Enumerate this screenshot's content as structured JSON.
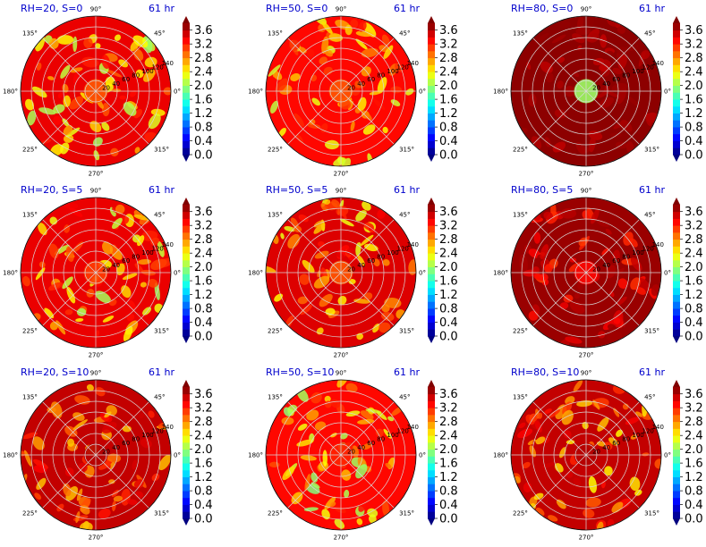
{
  "chart_data": {
    "type": "heatmap",
    "projection": "polar",
    "grid": true,
    "time_label": "61 hr",
    "angle_ticks": [
      "90°",
      "45°",
      "0°",
      "315°",
      "270°",
      "225°",
      "180°",
      "135°"
    ],
    "colorbar": {
      "ticks": [
        "0.0",
        "0.4",
        "0.8",
        "1.2",
        "1.6",
        "2.0",
        "2.4",
        "2.8",
        "3.2",
        "3.6"
      ],
      "range": [
        0.0,
        3.8
      ],
      "colormap": "jet",
      "extend": "both"
    },
    "panels": [
      {
        "title": "RH=20, S=0",
        "radial_ticks": [
          "20",
          "40",
          "60",
          "80",
          "100",
          "120",
          "140"
        ],
        "mean_value": 3.4,
        "center_value": 3.0,
        "speckle": 0.35
      },
      {
        "title": "RH=50, S=0",
        "radial_ticks": [
          "20",
          "40",
          "60",
          "80",
          "100",
          "120",
          "140"
        ],
        "mean_value": 3.3,
        "center_value": 3.0,
        "speckle": 0.3
      },
      {
        "title": "RH=80, S=0",
        "radial_ticks": [
          "20",
          "40",
          "60",
          "80",
          "100",
          "120",
          "140"
        ],
        "mean_value": 3.75,
        "center_value": 2.0,
        "speckle": 0.05
      },
      {
        "title": "RH=20, S=5",
        "radial_ticks": [
          "20",
          "40",
          "60",
          "80",
          "100",
          "120",
          "140"
        ],
        "mean_value": 3.4,
        "center_value": 3.1,
        "speckle": 0.35
      },
      {
        "title": "RH=50, S=5",
        "radial_ticks": [
          "20",
          "40",
          "60",
          "80",
          "100",
          "120",
          "140"
        ],
        "mean_value": 3.45,
        "center_value": 3.0,
        "speckle": 0.3
      },
      {
        "title": "RH=80, S=5",
        "radial_ticks": [
          "20",
          "40",
          "60",
          "80",
          "100",
          "120",
          "140"
        ],
        "mean_value": 3.7,
        "center_value": 3.3,
        "speckle": 0.15
      },
      {
        "title": "RH=20, S=10",
        "radial_ticks": [
          "20",
          "40",
          "60",
          "80",
          "100",
          "120",
          "140"
        ],
        "mean_value": 3.55,
        "center_value": 3.6,
        "speckle": 0.25
      },
      {
        "title": "RH=50, S=10",
        "radial_ticks": [
          "20",
          "40",
          "60",
          "80",
          "100",
          "120",
          "140"
        ],
        "mean_value": 3.3,
        "center_value": 3.2,
        "speckle": 0.35
      },
      {
        "title": "RH=80, S=10",
        "radial_ticks": [
          "20",
          "40",
          "60",
          "80",
          "100",
          "120",
          "140"
        ],
        "mean_value": 3.55,
        "center_value": 3.6,
        "speckle": 0.3
      }
    ]
  }
}
